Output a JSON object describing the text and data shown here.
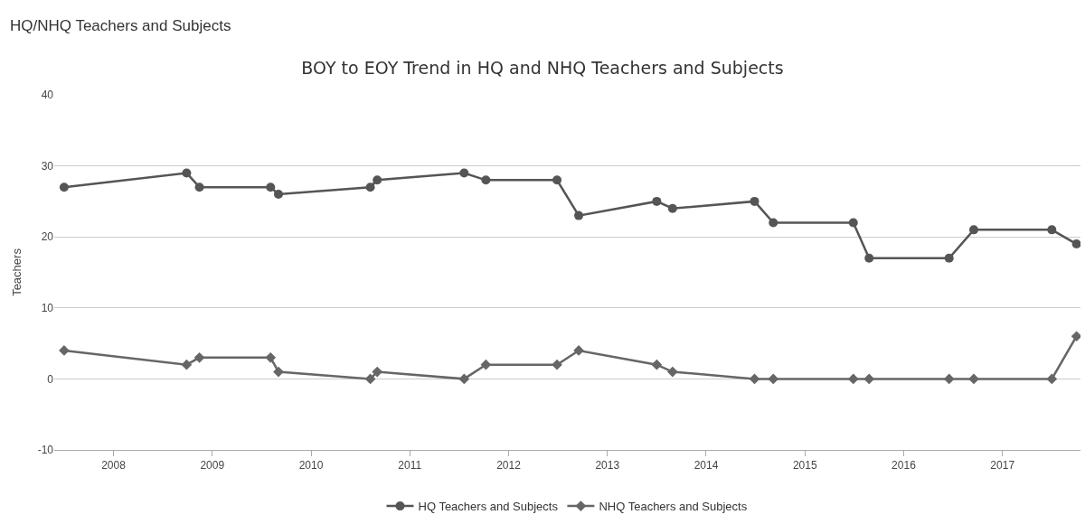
{
  "chart_data": {
    "type": "line",
    "title": "BOY to EOY Trend in HQ and NHQ Teachers and Subjects",
    "ylabel": "Teachers",
    "annotations": [
      "HQ/NHQ Teachers and Subjects"
    ],
    "x": [
      2007.5,
      2008.74,
      2008.87,
      2009.59,
      2009.67,
      2010.6,
      2010.67,
      2011.55,
      2011.77,
      2012.49,
      2012.71,
      2013.5,
      2013.66,
      2014.49,
      2014.68,
      2015.49,
      2015.65,
      2016.46,
      2016.71,
      2017.5,
      2017.75
    ],
    "series": [
      {
        "name": "HQ Teachers and Subjects",
        "color": "#555555",
        "marker": "circle",
        "values": [
          27,
          29,
          27,
          27,
          26,
          27,
          28,
          29,
          28,
          28,
          23,
          25,
          24,
          25,
          22,
          22,
          17,
          17,
          21,
          21,
          19
        ]
      },
      {
        "name": "NHQ Teachers and Subjects",
        "color": "#666666",
        "marker": "diamond",
        "values": [
          4,
          2,
          3,
          3,
          1,
          0,
          1,
          0,
          2,
          2,
          4,
          2,
          1,
          0,
          0,
          0,
          0,
          0,
          0,
          0,
          6
        ]
      }
    ],
    "xlim": [
      2007.4,
      2017.79
    ],
    "xticks": [
      2008,
      2009,
      2010,
      2011,
      2012,
      2013,
      2014,
      2015,
      2016,
      2017
    ],
    "ylim": [
      -10,
      40
    ],
    "yticks": [
      -10,
      0,
      10,
      20,
      30,
      40
    ],
    "grid": "y",
    "legend": "bottom",
    "line_style": "solid"
  }
}
